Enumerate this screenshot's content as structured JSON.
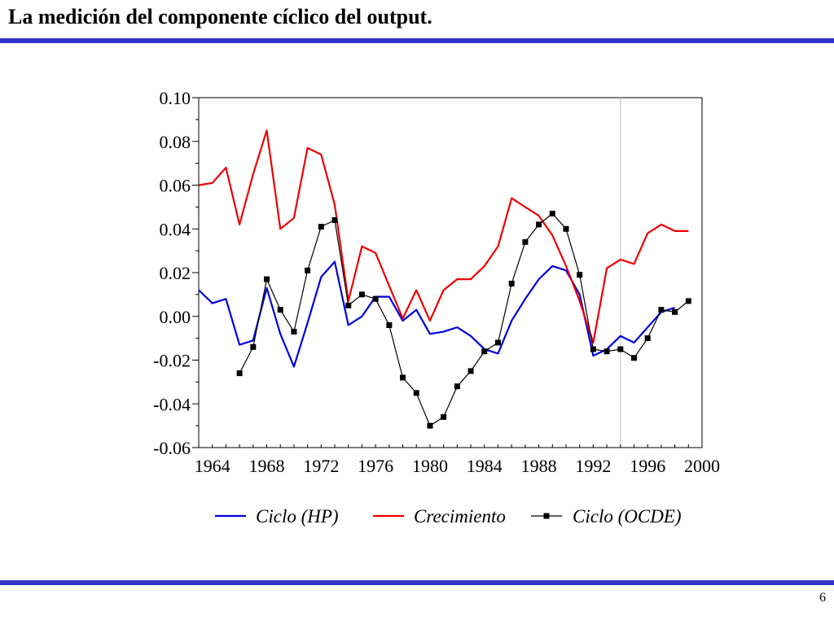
{
  "slide": {
    "title": "La medición del componente cíclico del output.",
    "page_number": "6"
  },
  "colors": {
    "rule": "#3333cc",
    "hp": "#0000dd",
    "crecimiento": "#ee0000",
    "ocde": "#000000"
  },
  "chart_data": {
    "type": "line",
    "title": "",
    "xlabel": "",
    "ylabel": "",
    "xlim": [
      1963,
      2000
    ],
    "ylim": [
      -0.06,
      0.1
    ],
    "x_ticks": [
      1964,
      1968,
      1972,
      1976,
      1980,
      1984,
      1988,
      1992,
      1996,
      2000
    ],
    "y_ticks": [
      -0.06,
      -0.04,
      -0.02,
      0.0,
      0.02,
      0.04,
      0.06,
      0.08,
      0.1
    ],
    "y_tick_labels": [
      "-0.06",
      "-0.04",
      "-0.02",
      "0.00",
      "0.02",
      "0.04",
      "0.06",
      "0.08",
      "0.10"
    ],
    "x_tick_labels": [
      "1964",
      "1968",
      "1972",
      "1976",
      "1980",
      "1984",
      "1988",
      "1992",
      "1996",
      "2000"
    ],
    "reference_line_x": 1994,
    "grid": false,
    "legend_position": "bottom",
    "series": [
      {
        "name": "Ciclo (HP)",
        "color": "#0000dd",
        "marker": "none",
        "x": [
          1963,
          1964,
          1965,
          1966,
          1967,
          1968,
          1969,
          1970,
          1971,
          1972,
          1973,
          1974,
          1975,
          1976,
          1977,
          1978,
          1979,
          1980,
          1981,
          1982,
          1983,
          1984,
          1985,
          1986,
          1987,
          1988,
          1989,
          1990,
          1991,
          1992,
          1993,
          1994,
          1995,
          1996,
          1997,
          1998
        ],
        "values": [
          0.012,
          0.006,
          0.008,
          -0.013,
          -0.011,
          0.013,
          -0.008,
          -0.023,
          -0.003,
          0.018,
          0.025,
          -0.004,
          0.0,
          0.009,
          0.009,
          -0.002,
          0.003,
          -0.008,
          -0.007,
          -0.005,
          -0.009,
          -0.015,
          -0.017,
          -0.002,
          0.008,
          0.017,
          0.023,
          0.021,
          0.01,
          -0.018,
          -0.015,
          -0.009,
          -0.012,
          -0.005,
          0.002,
          0.004
        ]
      },
      {
        "name": "Crecimiento",
        "color": "#ee0000",
        "marker": "none",
        "x": [
          1963,
          1964,
          1965,
          1966,
          1967,
          1968,
          1969,
          1970,
          1971,
          1972,
          1973,
          1974,
          1975,
          1976,
          1977,
          1978,
          1979,
          1980,
          1981,
          1982,
          1983,
          1984,
          1985,
          1986,
          1987,
          1988,
          1989,
          1990,
          1991,
          1992,
          1993,
          1994,
          1995,
          1996,
          1997,
          1998,
          1999
        ],
        "values": [
          0.06,
          0.061,
          0.068,
          0.042,
          0.065,
          0.085,
          0.04,
          0.045,
          0.077,
          0.074,
          0.051,
          0.007,
          0.032,
          0.029,
          0.014,
          -0.001,
          0.012,
          -0.002,
          0.012,
          0.017,
          0.017,
          0.023,
          0.032,
          0.054,
          0.05,
          0.046,
          0.037,
          0.023,
          0.007,
          -0.012,
          0.022,
          0.026,
          0.024,
          0.038,
          0.042,
          0.039,
          0.039
        ]
      },
      {
        "name": "Ciclo (OCDE)",
        "color": "#000000",
        "marker": "square",
        "x": [
          1966,
          1967,
          1968,
          1969,
          1970,
          1971,
          1972,
          1973,
          1974,
          1975,
          1976,
          1977,
          1978,
          1979,
          1980,
          1981,
          1982,
          1983,
          1984,
          1985,
          1986,
          1987,
          1988,
          1989,
          1990,
          1991,
          1992,
          1993,
          1994,
          1995,
          1996,
          1997,
          1998,
          1999
        ],
        "values": [
          -0.026,
          -0.014,
          0.017,
          0.003,
          -0.007,
          0.021,
          0.041,
          0.044,
          0.005,
          0.01,
          0.008,
          -0.004,
          -0.028,
          -0.035,
          -0.05,
          -0.046,
          -0.032,
          -0.025,
          -0.016,
          -0.012,
          0.015,
          0.034,
          0.042,
          0.047,
          0.04,
          0.019,
          -0.015,
          -0.016,
          -0.015,
          -0.019,
          -0.01,
          0.003,
          0.002,
          0.007
        ]
      }
    ]
  }
}
